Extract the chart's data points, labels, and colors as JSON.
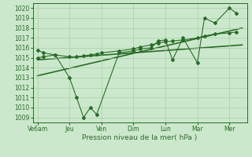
{
  "title": "",
  "xlabel": "Pression niveau de la mer( hPa )",
  "bg_color": "#cce8cc",
  "grid_color": "#aaccaa",
  "line_color": "#2a6b2a",
  "ylim": [
    1008.5,
    1020.5
  ],
  "yticks": [
    1009,
    1010,
    1011,
    1012,
    1013,
    1014,
    1015,
    1016,
    1017,
    1018,
    1019,
    1020
  ],
  "xtick_labels": [
    "Ve6am",
    "Jeu",
    "Ven",
    "Dim",
    "Lun",
    "Mar",
    "Mer"
  ],
  "xtick_positions": [
    0,
    1,
    2,
    3,
    4,
    5,
    6
  ],
  "xlim": [
    -0.15,
    6.55
  ],
  "series1_x": [
    0.0,
    0.18,
    0.55,
    1.0,
    1.22,
    1.44,
    1.65,
    1.85,
    2.55,
    3.0,
    3.22,
    3.55,
    3.78,
    4.0,
    4.22,
    4.55,
    5.0,
    5.22,
    5.55,
    6.0,
    6.22
  ],
  "series1_y": [
    1015.0,
    1015.1,
    1015.3,
    1013.0,
    1011.0,
    1009.0,
    1010.0,
    1009.3,
    1015.5,
    1015.7,
    1015.9,
    1016.0,
    1016.7,
    1016.8,
    1014.8,
    1017.0,
    1014.5,
    1019.0,
    1018.5,
    1020.0,
    1019.5
  ],
  "series2_x": [
    0.0,
    0.18,
    0.55,
    1.0,
    1.22,
    1.44,
    1.65,
    1.85,
    2.0,
    2.55,
    3.0,
    3.22,
    3.55,
    3.78,
    4.0,
    4.22,
    4.55,
    5.0,
    5.22,
    5.55,
    6.0,
    6.22
  ],
  "series2_y": [
    1015.8,
    1015.5,
    1015.3,
    1015.1,
    1015.1,
    1015.2,
    1015.3,
    1015.4,
    1015.5,
    1015.7,
    1015.9,
    1016.1,
    1016.3,
    1016.5,
    1016.6,
    1016.7,
    1016.8,
    1017.0,
    1017.2,
    1017.4,
    1017.5,
    1017.6
  ],
  "trend1_x": [
    0.0,
    6.4
  ],
  "trend1_y": [
    1013.2,
    1018.0
  ],
  "trend2_x": [
    0.0,
    6.4
  ],
  "trend2_y": [
    1014.8,
    1016.3
  ],
  "marker_style": "D",
  "marker_size": 2.0,
  "line_width": 0.8,
  "tick_fontsize": 5.5,
  "xlabel_fontsize": 6.5
}
